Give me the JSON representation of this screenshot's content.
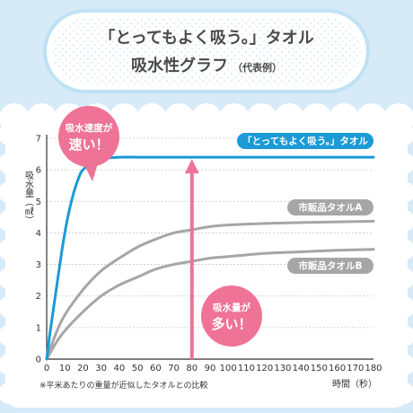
{
  "title": {
    "line1": "「とってもよく吸う。」タオル",
    "line2": "吸水性グラフ",
    "line2_sub": "（代表例）"
  },
  "colors": {
    "background": "#d6eaf8",
    "brand": "#1b9ad6",
    "grey": "#a6a6a6",
    "pink": "#ee7396",
    "pink_light": "#f59bb4"
  },
  "chart_data": {
    "type": "line",
    "title": "",
    "xlabel": "時間（秒）",
    "ylabel": "吸水量（㎖）",
    "xlim": [
      0,
      180
    ],
    "ylim": [
      0,
      7
    ],
    "xticks": [
      0,
      10,
      20,
      30,
      40,
      50,
      60,
      70,
      80,
      90,
      100,
      110,
      120,
      130,
      140,
      150,
      160,
      170,
      180
    ],
    "yticks": [
      0,
      1,
      2,
      3,
      4,
      5,
      6,
      7
    ],
    "grid": true,
    "legend": "inline labels",
    "series": [
      {
        "name": "「とってもよく吸う。」タオル",
        "color": "#1b9ad6",
        "x": [
          0,
          2,
          5,
          8,
          10,
          12,
          15,
          18,
          20,
          25,
          30,
          40,
          50,
          60,
          80,
          100,
          140,
          180
        ],
        "y": [
          0,
          0.9,
          2.1,
          3.3,
          4.0,
          4.6,
          5.3,
          5.8,
          6.0,
          6.25,
          6.35,
          6.4,
          6.4,
          6.4,
          6.4,
          6.4,
          6.4,
          6.4
        ]
      },
      {
        "name": "市販品タオルA",
        "color": "#a6a6a6",
        "x": [
          0,
          5,
          10,
          20,
          30,
          40,
          50,
          60,
          70,
          80,
          90,
          100,
          120,
          140,
          160,
          180
        ],
        "y": [
          0,
          0.8,
          1.4,
          2.2,
          2.8,
          3.2,
          3.55,
          3.8,
          4.0,
          4.1,
          4.2,
          4.25,
          4.3,
          4.33,
          4.35,
          4.37
        ]
      },
      {
        "name": "市販品タオルB",
        "color": "#a6a6a6",
        "x": [
          0,
          5,
          10,
          20,
          30,
          40,
          50,
          60,
          70,
          80,
          90,
          100,
          120,
          140,
          160,
          180
        ],
        "y": [
          0,
          0.5,
          0.9,
          1.5,
          2.0,
          2.35,
          2.6,
          2.85,
          3.0,
          3.1,
          3.2,
          3.25,
          3.35,
          3.4,
          3.45,
          3.48
        ]
      }
    ],
    "annotations": {
      "speed_callout": {
        "line1": "吸水速度が",
        "line2": "速い！"
      },
      "amount_callout": {
        "line1": "吸水量が",
        "line2": "多い！"
      },
      "arrow": {
        "x": 80,
        "y_from": 0,
        "y_to": 6.4
      },
      "footnote": "※平米あたりの重量が近似したタオルとの比較"
    }
  }
}
